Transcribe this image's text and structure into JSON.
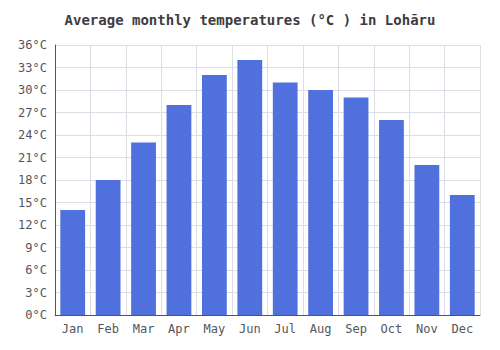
{
  "chart_data": {
    "type": "bar",
    "title": "Average monthly temperatures (°C ) in Lohāru",
    "categories": [
      "Jan",
      "Feb",
      "Mar",
      "Apr",
      "May",
      "Jun",
      "Jul",
      "Aug",
      "Sep",
      "Oct",
      "Nov",
      "Dec"
    ],
    "values": [
      14,
      18,
      23,
      28,
      32,
      34,
      31,
      30,
      29,
      26,
      20,
      16
    ],
    "ylim": [
      0,
      36
    ],
    "yticks": [
      {
        "value": 0,
        "label": "0°C"
      },
      {
        "value": 3,
        "label": "3°C"
      },
      {
        "value": 6,
        "label": "6°C"
      },
      {
        "value": 9,
        "label": "9°C"
      },
      {
        "value": 12,
        "label": "12°C"
      },
      {
        "value": 15,
        "label": "15°C"
      },
      {
        "value": 18,
        "label": "18°C"
      },
      {
        "value": 21,
        "label": "21°C"
      },
      {
        "value": 24,
        "label": "24°C"
      },
      {
        "value": 27,
        "label": "27°C"
      },
      {
        "value": 30,
        "label": "30°C"
      },
      {
        "value": 33,
        "label": "33°C"
      },
      {
        "value": 36,
        "label": "36°C"
      }
    ],
    "grid": true
  }
}
